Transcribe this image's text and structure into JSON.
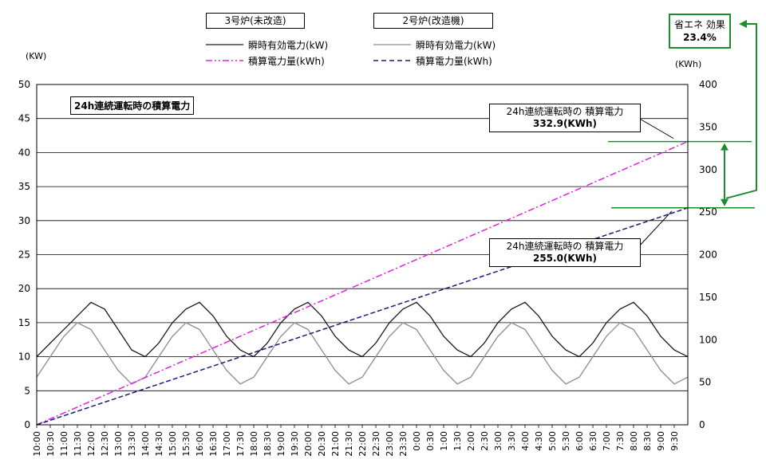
{
  "legend": {
    "group_a": "3号炉(未改造)",
    "group_b": "2号炉(改造機)",
    "a_inst": "瞬時有効電力(kW)",
    "a_cum": "積算電力量(kWh)",
    "b_inst": "瞬時有効電力(kW)",
    "b_cum": "積算電力量(kWh)"
  },
  "units": {
    "left": "(KW)",
    "right": "(KWh)"
  },
  "inner_title": "24h連続運転時の積算電力",
  "callout_top": {
    "label": "24h連続運転時の 積算電力",
    "value": "332.9(KWh)"
  },
  "callout_bottom": {
    "label": "24h連続運転時の 積算電力",
    "value": "255.0(KWh)"
  },
  "effect": {
    "label": "省エネ 効果",
    "value": "23.4%"
  },
  "colors": {
    "unit3_inst": "#1a1a1a",
    "unit2_inst": "#8c8c8c",
    "unit3_cum": "#e020e0",
    "unit2_cum": "#1a1a80",
    "annotation": "#1a8f2e"
  },
  "chart_data": {
    "type": "line",
    "xlabel": "",
    "ylabel": "",
    "ylim": [
      0,
      50
    ],
    "y2lim": [
      0,
      400
    ],
    "grid": true,
    "legend_position": "top",
    "x_ticks": [
      "10:00",
      "10:30",
      "11:00",
      "11:30",
      "12:00",
      "12:30",
      "13:00",
      "13:30",
      "14:00",
      "14:30",
      "15:00",
      "15:30",
      "16:00",
      "16:30",
      "17:00",
      "17:30",
      "18:00",
      "18:30",
      "19:00",
      "19:30",
      "20:00",
      "20:30",
      "21:00",
      "21:30",
      "22:00",
      "22:30",
      "23:00",
      "23:30",
      "0:00",
      "0:30",
      "1:00",
      "1:30",
      "2:00",
      "2:30",
      "3:00",
      "3:30",
      "4:00",
      "4:30",
      "5:00",
      "5:30",
      "6:00",
      "6:30",
      "7:00",
      "7:30",
      "8:00",
      "8:30",
      "9:00",
      "9:30"
    ],
    "y_ticks": [
      0,
      5,
      10,
      15,
      20,
      25,
      30,
      35,
      40,
      45,
      50
    ],
    "y2_ticks": [
      0,
      50,
      100,
      150,
      200,
      250,
      300,
      350,
      400
    ],
    "series": [
      {
        "name": "3号炉(未改造) 瞬時有効電力(kW)",
        "axis": "left",
        "x": [
          "10:00",
          "10:30",
          "11:00",
          "11:30",
          "12:00",
          "12:30",
          "13:00",
          "13:30",
          "14:00",
          "14:30",
          "15:00",
          "15:30",
          "16:00",
          "16:30",
          "17:00",
          "17:30",
          "18:00",
          "18:30",
          "19:00",
          "19:30",
          "20:00",
          "20:30",
          "21:00",
          "21:30",
          "22:00",
          "22:30",
          "23:00",
          "23:30",
          "0:00",
          "0:30",
          "1:00",
          "1:30",
          "2:00",
          "2:30",
          "3:00",
          "3:30",
          "4:00",
          "4:30",
          "5:00",
          "5:30",
          "6:00",
          "6:30",
          "7:00",
          "7:30",
          "8:00",
          "8:30",
          "9:00",
          "9:30",
          "10:00"
        ],
        "values": [
          10,
          12,
          14,
          16,
          18,
          17,
          14,
          11,
          10,
          12,
          15,
          17,
          18,
          16,
          13,
          11,
          10,
          12,
          15,
          17,
          18,
          16,
          13,
          11,
          10,
          12,
          15,
          17,
          18,
          16,
          13,
          11,
          10,
          12,
          15,
          17,
          18,
          16,
          13,
          11,
          10,
          12,
          15,
          17,
          18,
          16,
          13,
          11,
          10
        ]
      },
      {
        "name": "2号炉(改造機) 瞬時有効電力(kW)",
        "axis": "left",
        "x": [
          "10:00",
          "10:30",
          "11:00",
          "11:30",
          "12:00",
          "12:30",
          "13:00",
          "13:30",
          "14:00",
          "14:30",
          "15:00",
          "15:30",
          "16:00",
          "16:30",
          "17:00",
          "17:30",
          "18:00",
          "18:30",
          "19:00",
          "19:30",
          "20:00",
          "20:30",
          "21:00",
          "21:30",
          "22:00",
          "22:30",
          "23:00",
          "23:30",
          "0:00",
          "0:30",
          "1:00",
          "1:30",
          "2:00",
          "2:30",
          "3:00",
          "3:30",
          "4:00",
          "4:30",
          "5:00",
          "5:30",
          "6:00",
          "6:30",
          "7:00",
          "7:30",
          "8:00",
          "8:30",
          "9:00",
          "9:30",
          "10:00"
        ],
        "values": [
          7,
          10,
          13,
          15,
          14,
          11,
          8,
          6,
          7,
          10,
          13,
          15,
          14,
          11,
          8,
          6,
          7,
          10,
          13,
          15,
          14,
          11,
          8,
          6,
          7,
          10,
          13,
          15,
          14,
          11,
          8,
          6,
          7,
          10,
          13,
          15,
          14,
          11,
          8,
          6,
          7,
          10,
          13,
          15,
          14,
          11,
          8,
          6,
          7
        ]
      },
      {
        "name": "3号炉(未改造) 積算電力量(kWh)",
        "axis": "right",
        "x": [
          "10:00",
          "10:00(+1日)"
        ],
        "values": [
          0,
          332.9
        ]
      },
      {
        "name": "2号炉(改造機) 積算電力量(kWh)",
        "axis": "right",
        "x": [
          "10:00",
          "10:00(+1日)"
        ],
        "values": [
          0,
          255.0
        ]
      }
    ]
  }
}
